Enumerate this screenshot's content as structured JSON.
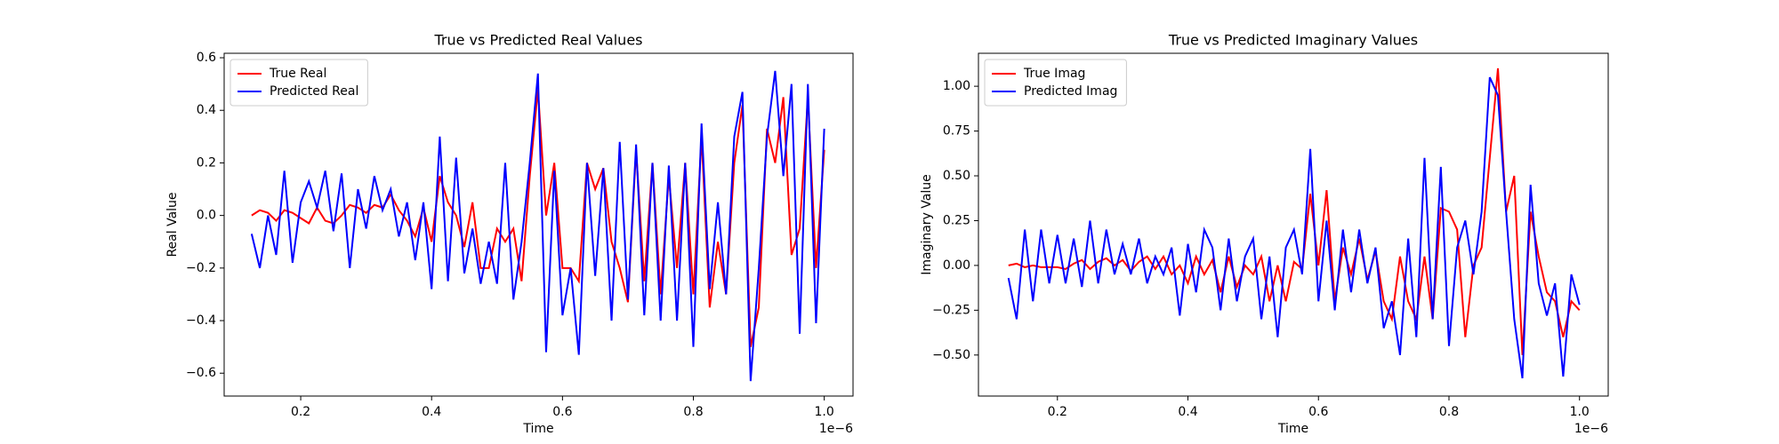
{
  "chart_data": [
    {
      "type": "line",
      "title": "True vs Predicted Real Values",
      "xlabel": "Time",
      "ylabel": "Real Value",
      "x_offset": "1e−6",
      "x": [
        0.125,
        0.1375,
        0.15,
        0.1625,
        0.175,
        0.1875,
        0.2,
        0.2125,
        0.225,
        0.2375,
        0.25,
        0.2625,
        0.275,
        0.2875,
        0.3,
        0.3125,
        0.325,
        0.3375,
        0.35,
        0.3625,
        0.375,
        0.3875,
        0.4,
        0.4125,
        0.425,
        0.4375,
        0.45,
        0.4625,
        0.475,
        0.4875,
        0.5,
        0.5125,
        0.525,
        0.5375,
        0.55,
        0.5625,
        0.575,
        0.5875,
        0.6,
        0.6125,
        0.625,
        0.6375,
        0.65,
        0.6625,
        0.675,
        0.6875,
        0.7,
        0.7125,
        0.725,
        0.7375,
        0.75,
        0.7625,
        0.775,
        0.7875,
        0.8,
        0.8125,
        0.825,
        0.8375,
        0.85,
        0.8625,
        0.875,
        0.8875,
        0.9,
        0.9125,
        0.925,
        0.9375,
        0.95,
        0.9625,
        0.975,
        0.9875,
        1.0
      ],
      "series": [
        {
          "name": "True Real",
          "color": "#ff0000",
          "values": [
            0,
            0.02,
            0.01,
            -0.02,
            0.02,
            0.01,
            -0.01,
            -0.03,
            0.03,
            -0.02,
            -0.03,
            0,
            0.04,
            0.03,
            0.01,
            0.04,
            0.03,
            0.08,
            0.02,
            -0.02,
            -0.08,
            0.03,
            -0.1,
            0.15,
            0.05,
            0,
            -0.12,
            0.05,
            -0.2,
            -0.2,
            -0.05,
            -0.1,
            -0.05,
            -0.25,
            0.15,
            0.48,
            0,
            0.2,
            -0.2,
            -0.2,
            -0.25,
            0.2,
            0.1,
            0.18,
            -0.1,
            -0.2,
            -0.33,
            0.25,
            -0.25,
            0.2,
            -0.3,
            0.15,
            -0.2,
            0.2,
            -0.3,
            0.3,
            -0.35,
            -0.1,
            -0.3,
            0.2,
            0.42,
            -0.5,
            -0.35,
            0.33,
            0.2,
            0.45,
            -0.15,
            -0.05,
            0.45,
            -0.2,
            0.25
          ]
        },
        {
          "name": "Predicted Real",
          "color": "#0000ff",
          "values": [
            -0.07,
            -0.2,
            0,
            -0.15,
            0.17,
            -0.18,
            0.05,
            0.13,
            0.03,
            0.17,
            -0.06,
            0.16,
            -0.2,
            0.1,
            -0.05,
            0.15,
            0.02,
            0.1,
            -0.08,
            0.05,
            -0.17,
            0.05,
            -0.28,
            0.3,
            -0.25,
            0.22,
            -0.22,
            -0.05,
            -0.26,
            -0.1,
            -0.26,
            0.2,
            -0.32,
            -0.1,
            0.2,
            0.54,
            -0.52,
            0.17,
            -0.38,
            -0.2,
            -0.53,
            0.2,
            -0.23,
            0.18,
            -0.4,
            0.28,
            -0.32,
            0.27,
            -0.38,
            0.2,
            -0.4,
            0.19,
            -0.4,
            0.2,
            -0.5,
            0.35,
            -0.28,
            0.05,
            -0.3,
            0.3,
            0.47,
            -0.63,
            -0.2,
            0.3,
            0.55,
            0.15,
            0.5,
            -0.45,
            0.5,
            -0.41,
            0.33
          ]
        }
      ],
      "xlim": [
        0.083,
        1.044
      ],
      "xticks": [
        0.2,
        0.4,
        0.6,
        0.8,
        {
          "value": 1.0,
          "label": "1.0"
        }
      ],
      "ylim": [
        -0.687,
        0.617
      ],
      "yticks": [
        {
          "value": -0.6,
          "label": "−0.6"
        },
        {
          "value": -0.4,
          "label": "−0.4"
        },
        {
          "value": -0.2,
          "label": "−0.2"
        },
        {
          "value": 0,
          "label": "0.0"
        },
        0.2,
        0.4,
        0.6
      ],
      "legend": "upper left"
    },
    {
      "type": "line",
      "title": "True vs Predicted Imaginary Values",
      "xlabel": "Time",
      "ylabel": "Imaginary Value",
      "x_offset": "1e−6",
      "x": [
        0.125,
        0.1375,
        0.15,
        0.1625,
        0.175,
        0.1875,
        0.2,
        0.2125,
        0.225,
        0.2375,
        0.25,
        0.2625,
        0.275,
        0.2875,
        0.3,
        0.3125,
        0.325,
        0.3375,
        0.35,
        0.3625,
        0.375,
        0.3875,
        0.4,
        0.4125,
        0.425,
        0.4375,
        0.45,
        0.4625,
        0.475,
        0.4875,
        0.5,
        0.5125,
        0.525,
        0.5375,
        0.55,
        0.5625,
        0.575,
        0.5875,
        0.6,
        0.6125,
        0.625,
        0.6375,
        0.65,
        0.6625,
        0.675,
        0.6875,
        0.7,
        0.7125,
        0.725,
        0.7375,
        0.75,
        0.7625,
        0.775,
        0.7875,
        0.8,
        0.8125,
        0.825,
        0.8375,
        0.85,
        0.8625,
        0.875,
        0.8875,
        0.9,
        0.9125,
        0.925,
        0.9375,
        0.95,
        0.9625,
        0.975,
        0.9875,
        1.0
      ],
      "series": [
        {
          "name": "True Imag",
          "color": "#ff0000",
          "values": [
            0,
            0.01,
            -0.01,
            0,
            -0.01,
            -0.01,
            -0.01,
            -0.02,
            0.01,
            0.03,
            -0.02,
            0.02,
            0.04,
            0,
            0.03,
            -0.03,
            0.02,
            0.05,
            -0.02,
            0.05,
            -0.05,
            0,
            -0.1,
            0.05,
            -0.05,
            0.03,
            -0.15,
            0.05,
            -0.12,
            0,
            -0.05,
            0.05,
            -0.2,
            0,
            -0.2,
            0.02,
            -0.02,
            0.4,
            0,
            0.42,
            -0.2,
            0.1,
            -0.05,
            0.15,
            -0.08,
            0.08,
            -0.2,
            -0.3,
            0.05,
            -0.2,
            -0.3,
            0.05,
            -0.3,
            0.32,
            0.3,
            0.2,
            -0.4,
            0,
            0.1,
            0.6,
            1.1,
            0.3,
            0.5,
            -0.5,
            0.3,
            0.05,
            -0.15,
            -0.2,
            -0.4,
            -0.2,
            -0.25
          ]
        },
        {
          "name": "Predicted Imag",
          "color": "#0000ff",
          "values": [
            -0.07,
            -0.3,
            0.2,
            -0.2,
            0.2,
            -0.1,
            0.17,
            -0.1,
            0.15,
            -0.12,
            0.25,
            -0.1,
            0.2,
            -0.05,
            0.12,
            -0.05,
            0.15,
            -0.1,
            0.05,
            -0.05,
            0.1,
            -0.28,
            0.12,
            -0.15,
            0.2,
            0.1,
            -0.25,
            0.15,
            -0.2,
            0.05,
            0.15,
            -0.3,
            0.05,
            -0.4,
            0.1,
            0.2,
            -0.05,
            0.65,
            -0.2,
            0.25,
            -0.25,
            0.2,
            -0.15,
            0.2,
            -0.1,
            0.1,
            -0.35,
            -0.2,
            -0.5,
            0.15,
            -0.4,
            0.6,
            -0.3,
            0.55,
            -0.45,
            0.1,
            0.25,
            -0.05,
            0.3,
            1.05,
            0.95,
            0.3,
            -0.3,
            -0.63,
            0.45,
            -0.1,
            -0.28,
            -0.1,
            -0.62,
            -0.05,
            -0.22
          ]
        }
      ],
      "xlim": [
        0.079,
        1.044
      ],
      "xticks": [
        0.2,
        0.4,
        0.6,
        0.8,
        {
          "value": 1.0,
          "label": "1.0"
        }
      ],
      "ylim": [
        -0.729,
        1.184
      ],
      "yticks": [
        {
          "value": -0.5,
          "label": "−0.50"
        },
        {
          "value": -0.25,
          "label": "−0.25"
        },
        {
          "value": 0,
          "label": "0.00"
        },
        0.25,
        {
          "value": 0.5,
          "label": "0.50"
        },
        0.75,
        {
          "value": 1.0,
          "label": "1.00"
        }
      ],
      "legend": "upper left"
    }
  ]
}
